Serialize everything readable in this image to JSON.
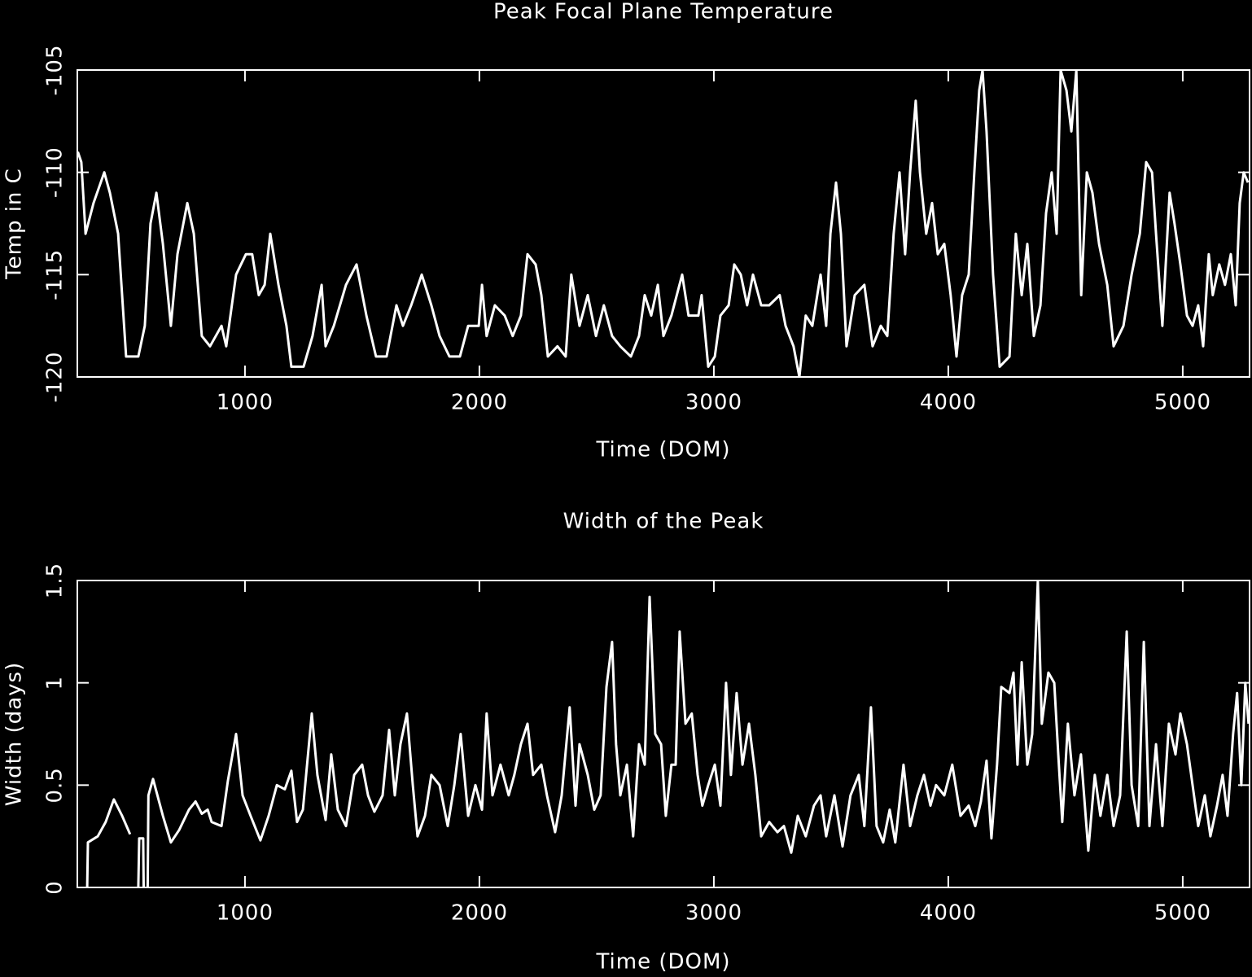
{
  "chart_data": [
    {
      "type": "line",
      "title": "Peak Focal Plane Temperature",
      "xlabel": "Time (DOM)",
      "ylabel": "Temp in C",
      "color": "#ffffff",
      "xlim": [
        285,
        5285
      ],
      "ylim": [
        -120,
        -105
      ],
      "xticks": [
        1000,
        2000,
        3000,
        4000,
        5000
      ],
      "yticks": [
        -120,
        -115,
        -110,
        -105
      ],
      "x": [
        287,
        302,
        320,
        354,
        400,
        424,
        459,
        493,
        545,
        573,
        597,
        622,
        650,
        684,
        712,
        754,
        782,
        816,
        851,
        900,
        920,
        962,
        1004,
        1031,
        1059,
        1084,
        1108,
        1143,
        1177,
        1198,
        1250,
        1288,
        1327,
        1344,
        1379,
        1431,
        1476,
        1518,
        1559,
        1604,
        1646,
        1674,
        1709,
        1754,
        1795,
        1830,
        1872,
        1917,
        1952,
        1997,
        2011,
        2031,
        2066,
        2108,
        2142,
        2177,
        2205,
        2240,
        2264,
        2292,
        2333,
        2368,
        2392,
        2427,
        2462,
        2497,
        2531,
        2566,
        2601,
        2646,
        2681,
        2705,
        2733,
        2761,
        2785,
        2819,
        2865,
        2892,
        2934,
        2948,
        2976,
        3004,
        3028,
        3063,
        3087,
        3115,
        3142,
        3167,
        3202,
        3236,
        3281,
        3306,
        3340,
        3365,
        3392,
        3420,
        3455,
        3479,
        3497,
        3521,
        3542,
        3566,
        3601,
        3642,
        3677,
        3712,
        3740,
        3767,
        3792,
        3816,
        3837,
        3861,
        3879,
        3906,
        3931,
        3955,
        3983,
        4010,
        4035,
        4059,
        4087,
        4111,
        4132,
        4146,
        4163,
        4191,
        4219,
        4261,
        4288,
        4313,
        4337,
        4365,
        4393,
        4417,
        4441,
        4462,
        4479,
        4504,
        4525,
        4546,
        4567,
        4591,
        4615,
        4643,
        4678,
        4705,
        4747,
        4782,
        4817,
        4844,
        4869,
        4886,
        4913,
        4944,
        4965,
        4990,
        5018,
        5042,
        5066,
        5087,
        5111,
        5128,
        5156,
        5180,
        5205,
        5226,
        5243,
        5260,
        5278
      ],
      "values": [
        -109,
        -109.5,
        -113,
        -111.5,
        -110,
        -111,
        -113,
        -119,
        -119,
        -117.5,
        -112.5,
        -111,
        -113.5,
        -117.5,
        -114,
        -111.5,
        -113,
        -118,
        -118.5,
        -117.5,
        -118.5,
        -115,
        -114,
        -114,
        -116,
        -115.5,
        -113,
        -115.5,
        -117.5,
        -119.5,
        -119.5,
        -118,
        -115.5,
        -118.5,
        -117.5,
        -115.5,
        -114.5,
        -117,
        -119,
        -119,
        -116.5,
        -117.5,
        -116.5,
        -115,
        -116.5,
        -118,
        -119,
        -119,
        -117.5,
        -117.5,
        -115.5,
        -118,
        -116.5,
        -117,
        -118,
        -117,
        -114,
        -114.5,
        -116,
        -119,
        -118.5,
        -119,
        -115,
        -117.5,
        -116,
        -118,
        -116.5,
        -118,
        -118.5,
        -119,
        -118,
        -116,
        -117,
        -115.5,
        -118,
        -117,
        -115,
        -117,
        -117,
        -116,
        -119.5,
        -119,
        -117,
        -116.5,
        -114.5,
        -115,
        -116.5,
        -115,
        -116.5,
        -116.5,
        -116,
        -117.5,
        -118.5,
        -120,
        -117,
        -117.5,
        -115,
        -117.5,
        -113,
        -110.5,
        -113,
        -118.5,
        -116,
        -115.5,
        -118.5,
        -117.5,
        -118,
        -113,
        -110,
        -114,
        -110,
        -106.5,
        -110,
        -113,
        -111.5,
        -114,
        -113.5,
        -116,
        -119,
        -116,
        -115,
        -110,
        -106,
        -105,
        -108,
        -115,
        -119.5,
        -119,
        -113,
        -116,
        -113.5,
        -118,
        -116.5,
        -112,
        -110,
        -113,
        -105,
        -106,
        -108,
        -105,
        -116,
        -110,
        -111,
        -113.5,
        -115.5,
        -118.5,
        -117.5,
        -115,
        -113,
        -109.5,
        -110,
        -113,
        -117.5,
        -111,
        -112.5,
        -114.5,
        -117,
        -117.5,
        -116.5,
        -118.5,
        -114,
        -116,
        -114.5,
        -115.5,
        -114,
        -116.5,
        -111.5,
        -110,
        -110.5
      ]
    },
    {
      "type": "line",
      "title": "Width of the Peak",
      "xlabel": "Time (DOM)",
      "ylabel": "Width (days)",
      "color": "#ffffff",
      "xlim": [
        285,
        5285
      ],
      "ylim": [
        0,
        1.5
      ],
      "xticks": [
        1000,
        2000,
        3000,
        4000,
        5000
      ],
      "yticks": [
        0,
        0.5,
        1,
        1.5
      ],
      "x": [
        327,
        330,
        372,
        406,
        441,
        476,
        510,
        527,
        545,
        549,
        566,
        568,
        577,
        585,
        588,
        608,
        650,
        684,
        719,
        761,
        789,
        816,
        841,
        858,
        900,
        927,
        962,
        990,
        1024,
        1066,
        1101,
        1136,
        1170,
        1198,
        1222,
        1247,
        1285,
        1309,
        1344,
        1368,
        1396,
        1431,
        1466,
        1500,
        1525,
        1552,
        1587,
        1615,
        1639,
        1663,
        1691,
        1716,
        1736,
        1768,
        1795,
        1830,
        1865,
        1893,
        1920,
        1952,
        1983,
        2011,
        2031,
        2056,
        2090,
        2125,
        2149,
        2177,
        2205,
        2229,
        2264,
        2288,
        2323,
        2351,
        2385,
        2410,
        2427,
        2462,
        2490,
        2517,
        2542,
        2566,
        2583,
        2601,
        2629,
        2656,
        2681,
        2705,
        2726,
        2750,
        2775,
        2795,
        2819,
        2837,
        2854,
        2879,
        2906,
        2931,
        2951,
        2976,
        3004,
        3028,
        3052,
        3073,
        3097,
        3122,
        3150,
        3177,
        3202,
        3236,
        3271,
        3299,
        3330,
        3358,
        3392,
        3427,
        3455,
        3479,
        3514,
        3549,
        3583,
        3618,
        3642,
        3670,
        3694,
        3722,
        3750,
        3774,
        3809,
        3837,
        3868,
        3896,
        3924,
        3948,
        3983,
        4017,
        4052,
        4087,
        4115,
        4139,
        4163,
        4184,
        4208,
        4226,
        4261,
        4278,
        4295,
        4313,
        4337,
        4358,
        4382,
        4399,
        4427,
        4452,
        4469,
        4486,
        4510,
        4538,
        4566,
        4597,
        4625,
        4649,
        4678,
        4705,
        4733,
        4761,
        4782,
        4810,
        4834,
        4858,
        4886,
        4913,
        4941,
        4969,
        4990,
        5018,
        5042,
        5066,
        5094,
        5118,
        5146,
        5170,
        5191,
        5215,
        5232,
        5250,
        5267,
        5281
      ],
      "values": [
        0,
        0.22,
        0.25,
        0.32,
        0.43,
        0.35,
        0.26,
        null,
        0,
        0.24,
        0.24,
        0,
        null,
        0,
        0.45,
        0.53,
        0.35,
        0.22,
        0.28,
        0.38,
        0.42,
        0.36,
        0.38,
        0.32,
        0.3,
        0.52,
        0.75,
        0.45,
        0.35,
        0.23,
        0.35,
        0.5,
        0.48,
        0.57,
        0.32,
        0.38,
        0.85,
        0.55,
        0.33,
        0.65,
        0.38,
        0.3,
        0.55,
        0.6,
        0.45,
        0.37,
        0.45,
        0.77,
        0.45,
        0.7,
        0.85,
        0.5,
        0.25,
        0.35,
        0.55,
        0.5,
        0.3,
        0.5,
        0.75,
        0.35,
        0.5,
        0.38,
        0.85,
        0.45,
        0.6,
        0.45,
        0.55,
        0.7,
        0.8,
        0.55,
        0.6,
        0.45,
        0.27,
        0.45,
        0.88,
        0.4,
        0.7,
        0.55,
        0.38,
        0.45,
        0.98,
        1.2,
        0.7,
        0.45,
        0.6,
        0.25,
        0.7,
        0.6,
        1.42,
        0.75,
        0.7,
        0.35,
        0.6,
        0.6,
        1.25,
        0.8,
        0.85,
        0.55,
        0.4,
        0.5,
        0.6,
        0.4,
        1.0,
        0.55,
        0.95,
        0.6,
        0.8,
        0.55,
        0.25,
        0.32,
        0.27,
        0.3,
        0.17,
        0.35,
        0.25,
        0.4,
        0.45,
        0.25,
        0.45,
        0.2,
        0.45,
        0.55,
        0.3,
        0.88,
        0.3,
        0.22,
        0.38,
        0.22,
        0.6,
        0.3,
        0.45,
        0.55,
        0.4,
        0.5,
        0.45,
        0.6,
        0.35,
        0.4,
        0.3,
        0.42,
        0.62,
        0.24,
        0.6,
        0.98,
        0.95,
        1.05,
        0.6,
        1.1,
        0.6,
        0.75,
        1.5,
        0.8,
        1.05,
        1.0,
        0.65,
        0.32,
        0.8,
        0.45,
        0.65,
        0.18,
        0.55,
        0.35,
        0.55,
        0.3,
        0.45,
        1.25,
        0.5,
        0.3,
        1.2,
        0.3,
        0.7,
        0.3,
        0.8,
        0.65,
        0.85,
        0.7,
        0.5,
        0.3,
        0.45,
        0.25,
        0.4,
        0.55,
        0.35,
        0.75,
        0.95,
        0.5,
        1.0,
        0.8
      ]
    }
  ]
}
